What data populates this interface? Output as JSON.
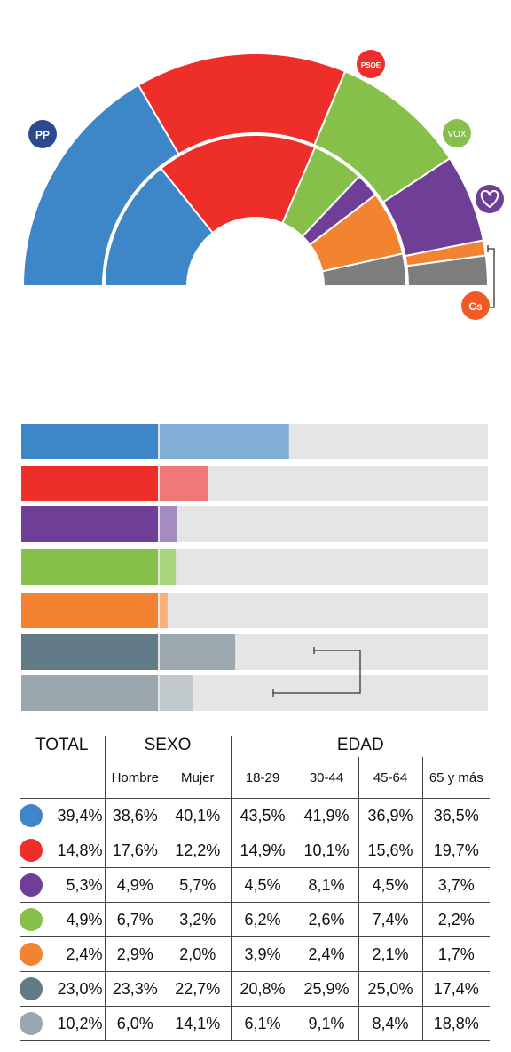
{
  "colors": {
    "pp": "#3d87c9",
    "pp_light": "#80aed6",
    "psoe": "#ee2f29",
    "psoe_light": "#f07878",
    "purple": "#6f3f98",
    "purple_light": "#a48bc0",
    "vox": "#86c04a",
    "vox_light": "#a9d57d",
    "orange": "#f28330",
    "orange_light": "#f7b07c",
    "dark_gray": "#617a86",
    "dark_gray_light": "#9ba8ae",
    "gray": "#9aa7ad",
    "gray_light": "#c1c8cb",
    "track": "#e5e5e5",
    "seat_gray": "#7d7d7d"
  },
  "logos": {
    "pp": "PP",
    "psoe": "PSOE",
    "vox": "VOX",
    "purple": "heart-icon",
    "cs": "Cs"
  },
  "chart_data": [
    {
      "type": "pie",
      "subtype": "semicircle",
      "rings": [
        {
          "name": "outer",
          "categories": [
            "pp",
            "psoe",
            "vox",
            "purple",
            "orange",
            "gray"
          ],
          "values": [
            79,
            70,
            45,
            29,
            5,
            10
          ]
        },
        {
          "name": "inner",
          "categories": [
            "pp",
            "psoe",
            "vox",
            "purple",
            "orange",
            "gray"
          ],
          "values": [
            33,
            40,
            13,
            6,
            16,
            8
          ]
        }
      ],
      "legend": [
        "PP",
        "PSOE",
        "VOX",
        "heart-icon",
        "Cs"
      ]
    },
    {
      "type": "bar",
      "orientation": "horizontal",
      "categories": [
        "pp",
        "psoe",
        "purple",
        "vox",
        "orange",
        "dark_gray",
        "gray"
      ],
      "values": [
        39.4,
        14.8,
        5.3,
        4.9,
        2.4,
        23.0,
        10.2
      ],
      "xlim": [
        0,
        100
      ]
    },
    {
      "type": "table",
      "group_headers": [
        "TOTAL",
        "SEXO",
        "EDAD"
      ],
      "columns": [
        "Hombre",
        "Mujer",
        "18-29",
        "30-44",
        "45-64",
        "65 y más"
      ],
      "rows": [
        {
          "color": "pp",
          "total": "39,4%",
          "values": [
            "38,6%",
            "40,1%",
            "43,5%",
            "41,9%",
            "36,9%",
            "36,5%"
          ]
        },
        {
          "color": "psoe",
          "total": "14,8%",
          "values": [
            "17,6%",
            "12,2%",
            "14,9%",
            "10,1%",
            "15,6%",
            "19,7%"
          ]
        },
        {
          "color": "purple",
          "total": "5,3%",
          "values": [
            "4,9%",
            "5,7%",
            "4,5%",
            "8,1%",
            "4,5%",
            "3,7%"
          ]
        },
        {
          "color": "vox",
          "total": "4,9%",
          "values": [
            "6,7%",
            "3,2%",
            "6,2%",
            "2,6%",
            "7,4%",
            "2,2%"
          ]
        },
        {
          "color": "orange",
          "total": "2,4%",
          "values": [
            "2,9%",
            "2,0%",
            "3,9%",
            "2,4%",
            "2,1%",
            "1,7%"
          ]
        },
        {
          "color": "dark_gray",
          "total": "23,0%",
          "values": [
            "23,3%",
            "22,7%",
            "20,8%",
            "25,9%",
            "25,0%",
            "17,4%"
          ]
        },
        {
          "color": "gray",
          "total": "10,2%",
          "values": [
            "6,0%",
            "14,1%",
            "6,1%",
            "9,1%",
            "8,4%",
            "18,8%"
          ]
        }
      ]
    }
  ]
}
